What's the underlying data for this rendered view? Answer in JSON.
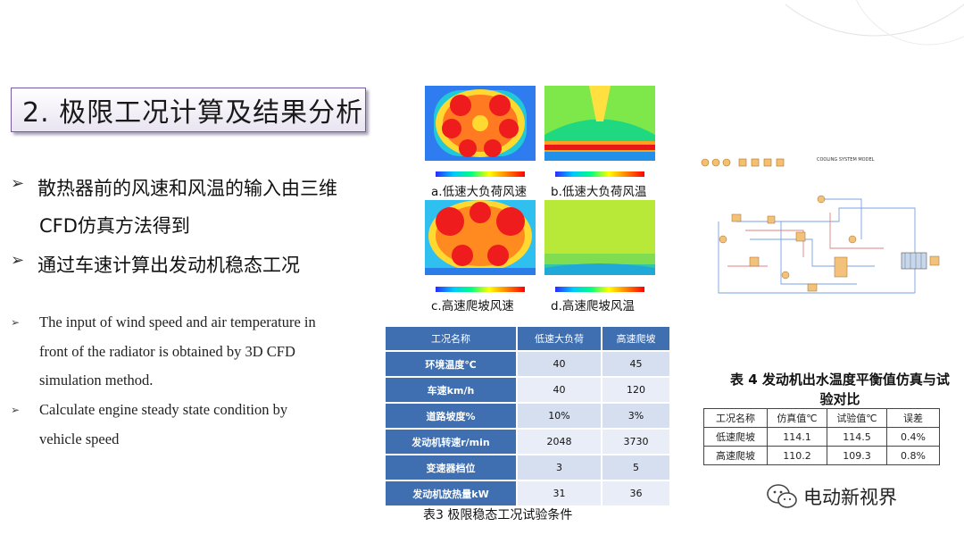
{
  "title": "2. 极限工况计算及结果分析",
  "bullets_cn": [
    "散热器前的风速和风温的输入由三维",
    "CFD仿真方法得到",
    "通过车速计算出发动机稳态工况"
  ],
  "bullets_en": [
    "The input of wind speed and air temperature in",
    "front of the radiator is obtained by 3D CFD",
    "simulation method.",
    "Calculate engine steady state condition by",
    "vehicle speed"
  ],
  "cfd_captions": {
    "a": "a.低速大负荷风速",
    "b": "b.低速大负荷风温",
    "c": "c.高速爬坡风速",
    "d": "d.高速爬坡风温"
  },
  "table3": {
    "headers": [
      "工况名称",
      "低速大负荷",
      "高速爬坡"
    ],
    "rows": [
      [
        "环境温度℃",
        "40",
        "45"
      ],
      [
        "车速km/h",
        "40",
        "120"
      ],
      [
        "道路坡度%",
        "10%",
        "3%"
      ],
      [
        "发动机转速r/min",
        "2048",
        "3730"
      ],
      [
        "变速器档位",
        "3",
        "5"
      ],
      [
        "发动机放热量kW",
        "31",
        "36"
      ]
    ],
    "caption": "表3 极限稳态工况试验条件"
  },
  "schematic_label": "COOLING SYSTEM MODEL",
  "table4": {
    "title_line1": "表 4 发动机出水温度平衡值仿真与试",
    "title_line2": "验对比",
    "headers": [
      "工况名称",
      "仿真值℃",
      "试验值℃",
      "误差"
    ],
    "rows": [
      [
        "低速爬坡",
        "114.1",
        "114.5",
        "0.4%"
      ],
      [
        "高速爬坡",
        "110.2",
        "109.3",
        "0.8%"
      ]
    ]
  },
  "watermark": "电动新视界",
  "colors": {
    "title_border": "#7a5aa8",
    "table_header": "#3f6fb0",
    "cell_light": "#d6dff0",
    "cell_lighter": "#e8edf7"
  }
}
